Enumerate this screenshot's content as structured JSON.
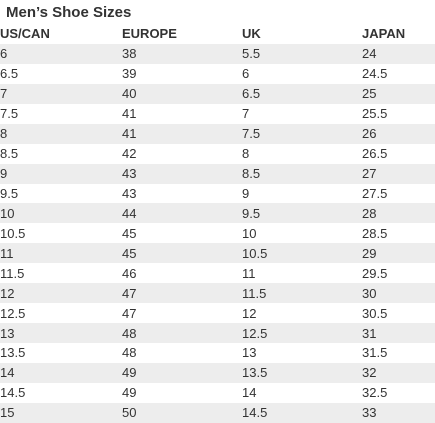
{
  "title": "Men’s Shoe Sizes",
  "columns": [
    "US/CAN",
    "EUROPE",
    "UK",
    "JAPAN"
  ],
  "rows": [
    [
      "6",
      "38",
      "5.5",
      "24"
    ],
    [
      "6.5",
      "39",
      "6",
      "24.5"
    ],
    [
      "7",
      "40",
      "6.5",
      "25"
    ],
    [
      "7.5",
      "41",
      "7",
      "25.5"
    ],
    [
      "8",
      "41",
      "7.5",
      "26"
    ],
    [
      "8.5",
      "42",
      "8",
      "26.5"
    ],
    [
      "9",
      "43",
      "8.5",
      "27"
    ],
    [
      "9.5",
      "43",
      "9",
      "27.5"
    ],
    [
      "10",
      "44",
      "9.5",
      "28"
    ],
    [
      "10.5",
      "45",
      "10",
      "28.5"
    ],
    [
      "11",
      "45",
      "10.5",
      "29"
    ],
    [
      "11.5",
      "46",
      "11",
      "29.5"
    ],
    [
      "12",
      "47",
      "11.5",
      "30"
    ],
    [
      "12.5",
      "47",
      "12",
      "30.5"
    ],
    [
      "13",
      "48",
      "12.5",
      "31"
    ],
    [
      "13.5",
      "48",
      "13",
      "31.5"
    ],
    [
      "14",
      "49",
      "13.5",
      "32"
    ],
    [
      "14.5",
      "49",
      "14",
      "32.5"
    ],
    [
      "15",
      "50",
      "14.5",
      "33"
    ]
  ],
  "colors": {
    "stripe": "#ededed",
    "text": "#333333",
    "background": "#ffffff"
  }
}
